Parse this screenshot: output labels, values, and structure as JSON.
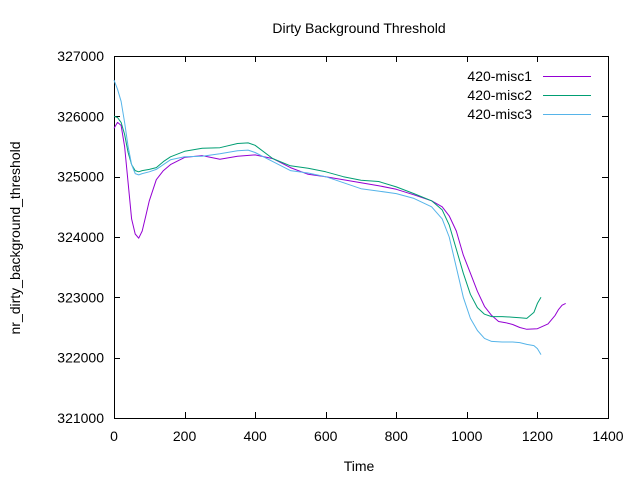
{
  "chart_data": {
    "type": "line",
    "title": "Dirty Background Threshold",
    "xlabel": "Time",
    "ylabel": "nr_dirty_background_threshold",
    "xlim": [
      0,
      1400
    ],
    "ylim": [
      321000,
      327000
    ],
    "xticks": [
      0,
      200,
      400,
      600,
      800,
      1000,
      1200,
      1400
    ],
    "yticks": [
      321000,
      322000,
      323000,
      324000,
      325000,
      326000,
      327000
    ],
    "grid": false,
    "legend_position": "top-right",
    "series": [
      {
        "name": "420-misc1",
        "color": "#9400d3",
        "x": [
          0,
          10,
          20,
          30,
          40,
          50,
          60,
          70,
          80,
          90,
          100,
          120,
          140,
          160,
          200,
          250,
          300,
          350,
          400,
          450,
          500,
          550,
          600,
          650,
          700,
          750,
          800,
          850,
          900,
          930,
          950,
          970,
          990,
          1010,
          1030,
          1050,
          1070,
          1090,
          1110,
          1130,
          1150,
          1170,
          1200,
          1230,
          1250,
          1260,
          1270,
          1280
        ],
        "y": [
          325800,
          325900,
          325850,
          325500,
          324900,
          324300,
          324050,
          323980,
          324100,
          324350,
          324600,
          324950,
          325100,
          325200,
          325320,
          325350,
          325290,
          325340,
          325360,
          325300,
          325150,
          325040,
          325000,
          324950,
          324900,
          324850,
          324790,
          324700,
          324600,
          324500,
          324350,
          324100,
          323700,
          323400,
          323100,
          322850,
          322700,
          322600,
          322580,
          322550,
          322500,
          322470,
          322480,
          322560,
          322700,
          322800,
          322870,
          322900
        ]
      },
      {
        "name": "420-misc2",
        "color": "#009e73",
        "x": [
          0,
          10,
          20,
          30,
          40,
          50,
          60,
          70,
          80,
          100,
          120,
          140,
          160,
          200,
          250,
          300,
          350,
          380,
          400,
          450,
          500,
          550,
          600,
          650,
          700,
          750,
          800,
          850,
          900,
          930,
          950,
          970,
          990,
          1010,
          1030,
          1050,
          1070,
          1100,
          1130,
          1150,
          1170,
          1190,
          1200,
          1210
        ],
        "y": [
          326000,
          325980,
          325900,
          325700,
          325400,
          325200,
          325100,
          325080,
          325100,
          325120,
          325150,
          325250,
          325330,
          325420,
          325470,
          325480,
          325550,
          325560,
          325520,
          325300,
          325180,
          325140,
          325080,
          325000,
          324940,
          324920,
          324830,
          324720,
          324600,
          324450,
          324200,
          323800,
          323400,
          323050,
          322830,
          322720,
          322680,
          322680,
          322670,
          322660,
          322650,
          322750,
          322900,
          323000
        ]
      },
      {
        "name": "420-misc3",
        "color": "#56b4e9",
        "x": [
          0,
          10,
          20,
          30,
          40,
          50,
          60,
          70,
          80,
          100,
          120,
          140,
          160,
          200,
          250,
          300,
          350,
          380,
          400,
          450,
          500,
          550,
          600,
          650,
          700,
          750,
          800,
          850,
          900,
          930,
          950,
          970,
          990,
          1010,
          1030,
          1050,
          1070,
          1100,
          1130,
          1150,
          1170,
          1190,
          1200,
          1210
        ],
        "y": [
          326600,
          326450,
          326250,
          325900,
          325500,
          325200,
          325050,
          325030,
          325050,
          325080,
          325120,
          325200,
          325280,
          325330,
          325340,
          325380,
          325430,
          325440,
          325400,
          325250,
          325100,
          325060,
          325000,
          324900,
          324800,
          324760,
          324720,
          324640,
          324500,
          324300,
          324000,
          323500,
          323000,
          322650,
          322450,
          322320,
          322270,
          322260,
          322260,
          322250,
          322220,
          322200,
          322150,
          322050
        ]
      }
    ]
  }
}
